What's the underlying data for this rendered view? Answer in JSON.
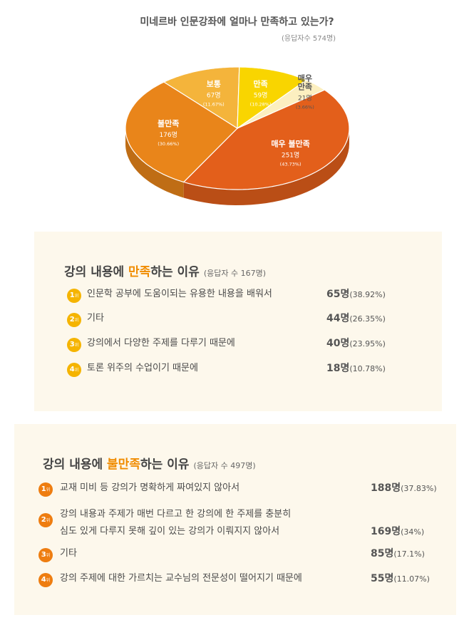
{
  "header": {
    "title": "미네르바 인문강좌에 얼마나 만족하고 있는가?",
    "respondents": "(응답자수 574명)"
  },
  "chart_data": {
    "type": "pie",
    "slices": [
      {
        "label": "매우 불만족",
        "count": "251명",
        "pct": "(43.73%)",
        "value": 43.73,
        "color": "#e35f1b"
      },
      {
        "label": "불만족",
        "count": "176명",
        "pct": "(30.66%)",
        "value": 30.66,
        "color": "#e9851a"
      },
      {
        "label": "보통",
        "count": "67명",
        "pct": "(11.67%)",
        "value": 11.67,
        "color": "#f4b43b"
      },
      {
        "label": "만족",
        "count": "59명",
        "pct": "(10.28%)",
        "value": 10.28,
        "color": "#f9d500"
      },
      {
        "label": "매우 만족",
        "count": "21명",
        "pct": "(3.66%)",
        "value": 3.66,
        "color": "#fcefc0"
      }
    ]
  },
  "satisfied": {
    "title_pre": "강의 내용에 ",
    "title_hl": "만족",
    "title_post": "하는 이유",
    "respondents": "(응답자 수 167명)",
    "items": [
      {
        "rank": "1",
        "unit": "위",
        "text": "인문학 공부에 도움이되는 유용한 내용을 배워서",
        "count": "65명",
        "pct": "(38.92%)"
      },
      {
        "rank": "2",
        "unit": "위",
        "text": "기타",
        "count": "44명",
        "pct": "(26.35%)"
      },
      {
        "rank": "3",
        "unit": "위",
        "text": "강의에서 다양한 주제를 다루기 때문에",
        "count": "40명",
        "pct": "(23.95%)"
      },
      {
        "rank": "4",
        "unit": "위",
        "text": "토론 위주의 수업이기 때문에",
        "count": "18명",
        "pct": "(10.78%)"
      }
    ]
  },
  "dissatisfied": {
    "title_pre": "강의 내용에 ",
    "title_hl": "불만족",
    "title_post": "하는 이유",
    "respondents": "(응답자 수 497명)",
    "items": [
      {
        "rank": "1",
        "unit": "위",
        "text": "교재 미비 등 강의가 명확하게 짜여있지 않아서",
        "text2": "",
        "count": "188명",
        "pct": "(37.83%)"
      },
      {
        "rank": "2",
        "unit": "위",
        "text": "강의 내용과 주제가 매번 다르고 한 강의에 한 주제를 충분히",
        "text2": "심도 있게 다루지 못해 깊이 있는 강의가 이뤄지지 않아서",
        "count": "169명",
        "pct": "(34%)"
      },
      {
        "rank": "3",
        "unit": "위",
        "text": "기타",
        "text2": "",
        "count": "85명",
        "pct": "(17.1%)"
      },
      {
        "rank": "4",
        "unit": "위",
        "text": "강의 주제에 대한 가르치는 교수님의 전문성이 떨어지기 때문에",
        "text2": "",
        "count": "55명",
        "pct": "(11.07%)"
      }
    ]
  }
}
